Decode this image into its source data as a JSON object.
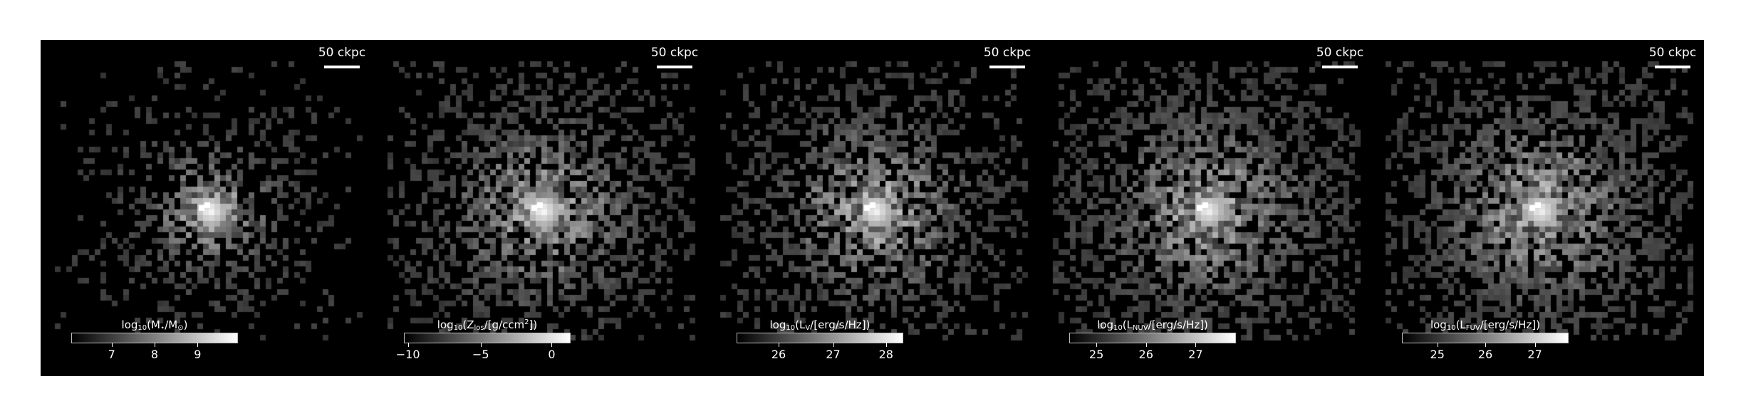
{
  "figure": {
    "panels": [
      {
        "scalebar": "50 ckpc",
        "colorbar": {
          "label_prefix": "log",
          "label_sub": "10",
          "label_main": "(M",
          "label_main_sub": "⋆",
          "label_mid": "/M",
          "label_mid_sub": "⊙",
          "label_end": ")",
          "ticks": [
            {
              "v": "7",
              "f": 0.24
            },
            {
              "v": "8",
              "f": 0.5
            },
            {
              "v": "9",
              "f": 0.76
            }
          ]
        },
        "blob": {
          "spread": 0.55,
          "coreBrightness": 1.0,
          "density": 0.55,
          "seed": 11
        }
      },
      {
        "scalebar": "50 ckpc",
        "colorbar": {
          "label_prefix": "log",
          "label_sub": "10",
          "label_main": "(Z",
          "label_main_sub": "los",
          "label_mid": "/[g/ccm",
          "label_mid_sup": "2",
          "label_end": "])",
          "ticks": [
            {
              "v": "−10",
              "f": 0.02
            },
            {
              "v": "−5",
              "f": 0.46
            },
            {
              "v": "0",
              "f": 0.89
            }
          ]
        },
        "blob": {
          "spread": 0.9,
          "coreBrightness": 1.0,
          "density": 0.75,
          "seed": 23
        }
      },
      {
        "scalebar": "50 ckpc",
        "colorbar": {
          "label_prefix": "log",
          "label_sub": "10",
          "label_main": "(L",
          "label_main_sub": "V",
          "label_mid": "/[erg/s/Hz])",
          "label_end": "",
          "ticks": [
            {
              "v": "26",
              "f": 0.25
            },
            {
              "v": "27",
              "f": 0.58
            },
            {
              "v": "28",
              "f": 0.9
            }
          ]
        },
        "blob": {
          "spread": 0.9,
          "coreBrightness": 0.95,
          "density": 0.7,
          "seed": 37
        }
      },
      {
        "scalebar": "50 ckpc",
        "colorbar": {
          "label_prefix": "log",
          "label_sub": "10",
          "label_main": "(L",
          "label_main_sub": "NUV",
          "label_mid": "/[erg/s/Hz])",
          "label_end": "",
          "ticks": [
            {
              "v": "25",
              "f": 0.16
            },
            {
              "v": "26",
              "f": 0.46
            },
            {
              "v": "27",
              "f": 0.76
            }
          ]
        },
        "blob": {
          "spread": 1.0,
          "coreBrightness": 0.9,
          "density": 0.85,
          "seed": 41
        }
      },
      {
        "scalebar": "50 ckpc",
        "colorbar": {
          "label_prefix": "log",
          "label_sub": "10",
          "label_main": "(L",
          "label_main_sub": "FUV",
          "label_mid": "/[erg/s/Hz])",
          "label_end": "",
          "ticks": [
            {
              "v": "25",
              "f": 0.21
            },
            {
              "v": "26",
              "f": 0.5
            },
            {
              "v": "27",
              "f": 0.8
            }
          ]
        },
        "blob": {
          "spread": 1.0,
          "coreBrightness": 0.9,
          "density": 0.85,
          "seed": 53
        }
      }
    ]
  }
}
